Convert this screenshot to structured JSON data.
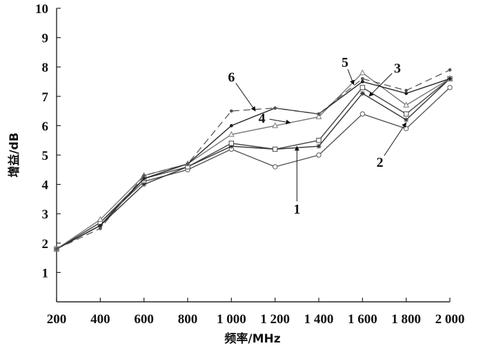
{
  "chart_data": {
    "type": "line",
    "xlabel": "频率/MHz",
    "ylabel": "增益/dB",
    "x": [
      200,
      400,
      600,
      800,
      1000,
      1200,
      1400,
      1600,
      1800,
      2000
    ],
    "x_tick_labels": [
      "200",
      "400",
      "600",
      "800",
      "1 000",
      "1 200",
      "1 400",
      "1 600",
      "1 800",
      "2 000"
    ],
    "xlim": [
      200,
      2000
    ],
    "ylim": [
      0,
      10
    ],
    "y_ticks": [
      1,
      2,
      3,
      4,
      5,
      6,
      7,
      8,
      9,
      10
    ],
    "grid": false,
    "legend": "none",
    "series": [
      {
        "name": "1",
        "values": [
          1.8,
          2.7,
          4.1,
          4.5,
          5.2,
          4.6,
          5.0,
          6.4,
          5.9,
          7.3
        ],
        "color": "#555555",
        "marker": "circle",
        "dash": "solid"
      },
      {
        "name": "2",
        "values": [
          1.8,
          2.6,
          4.0,
          4.6,
          5.3,
          5.2,
          5.3,
          7.1,
          6.2,
          7.6
        ],
        "color": "#333333",
        "marker": "star",
        "dash": "solid"
      },
      {
        "name": "3",
        "values": [
          1.8,
          2.7,
          4.2,
          4.6,
          5.4,
          5.2,
          5.5,
          7.3,
          6.4,
          7.6
        ],
        "color": "#444444",
        "marker": "square",
        "dash": "solid"
      },
      {
        "name": "4",
        "values": [
          1.8,
          2.8,
          4.3,
          4.7,
          5.7,
          6.0,
          6.3,
          7.8,
          6.7,
          7.6
        ],
        "color": "#777777",
        "marker": "triangle",
        "dash": "solid"
      },
      {
        "name": "5",
        "values": [
          1.8,
          2.6,
          4.2,
          4.7,
          6.0,
          6.6,
          6.4,
          7.5,
          7.1,
          7.6
        ],
        "color": "#222222",
        "marker": "dot",
        "dash": "solid"
      },
      {
        "name": "6",
        "values": [
          1.8,
          2.5,
          4.3,
          4.7,
          6.5,
          6.6,
          6.4,
          7.6,
          7.2,
          7.9
        ],
        "color": "#555555",
        "marker": "dot",
        "dash": "dashed"
      }
    ],
    "callouts": [
      {
        "label": "1",
        "target_series": "1",
        "target_x": 1300,
        "target_y": 5.3,
        "text_x": 1300,
        "text_y": 3.0
      },
      {
        "label": "2",
        "target_series": "2",
        "target_x": 1800,
        "target_y": 6.1,
        "text_x": 1680,
        "text_y": 4.6
      },
      {
        "label": "3",
        "target_series": "3",
        "target_x": 1630,
        "target_y": 7.0,
        "text_x": 1760,
        "text_y": 7.8
      },
      {
        "label": "4",
        "target_series": "4",
        "target_x": 1270,
        "target_y": 6.1,
        "text_x": 1140,
        "text_y": 6.1
      },
      {
        "label": "5",
        "target_series": "5",
        "target_x": 1560,
        "target_y": 7.4,
        "text_x": 1520,
        "text_y": 8.0
      },
      {
        "label": "6",
        "target_series": "6",
        "target_x": 1110,
        "target_y": 6.5,
        "text_x": 1000,
        "text_y": 7.5
      }
    ]
  }
}
